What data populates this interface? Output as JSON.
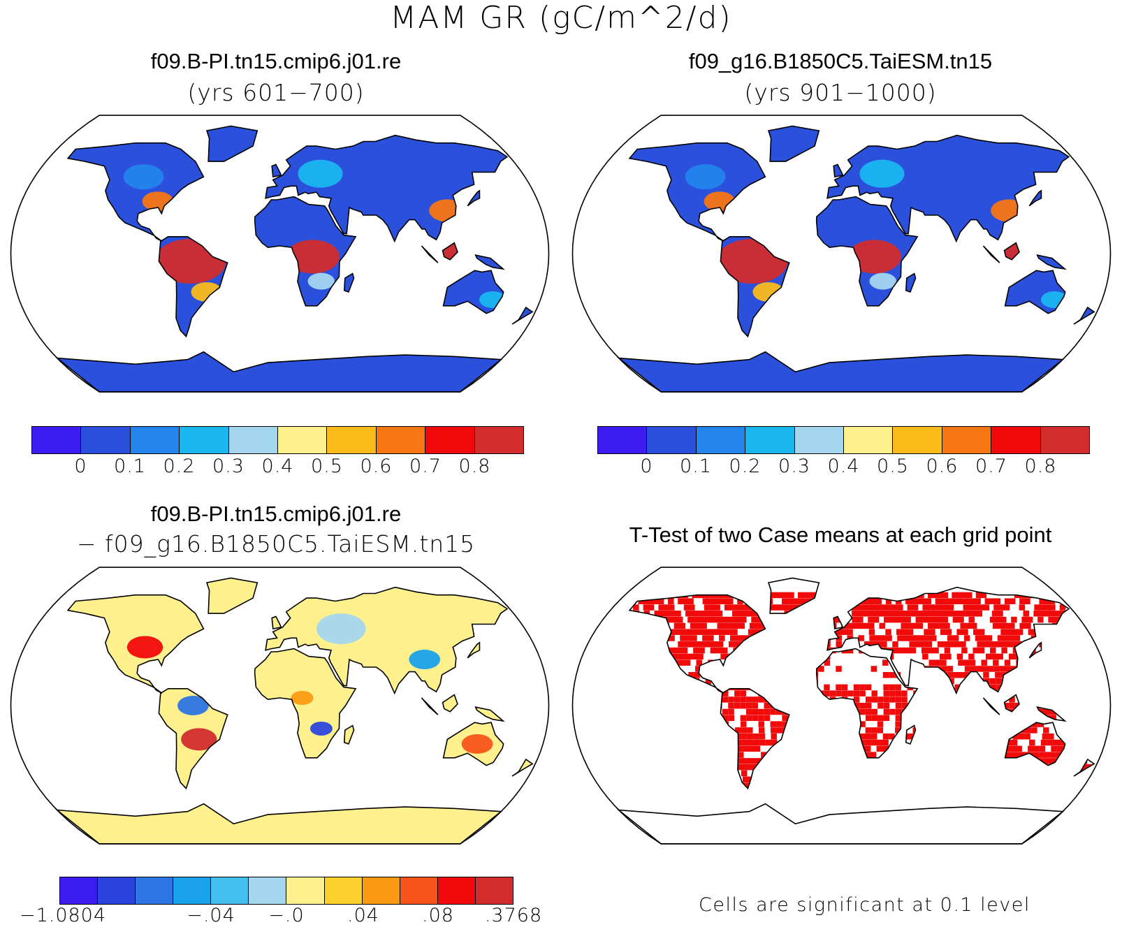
{
  "title": "MAM GR (gC/m^2/d)",
  "panels": {
    "top_left": {
      "title": "f09.B-PI.tn15.cmip6.j01.re",
      "subtitle": "(yrs 601−700)"
    },
    "top_right": {
      "title": "f09_g16.B1850C5.TaiESM.tn15",
      "subtitle": "(yrs 901−1000)"
    },
    "bottom_left": {
      "title": "f09.B-PI.tn15.cmip6.j01.re",
      "subtitle": "− f09_g16.B1850C5.TaiESM.tn15"
    },
    "bottom_right": {
      "title": "T-Test of two Case means at each grid point",
      "note": "Cells are significant at 0.1 level"
    }
  },
  "colorbars": {
    "absolute": {
      "colors": [
        "#3d1cf2",
        "#2b51dc",
        "#2384ec",
        "#1ab6f0",
        "#a5d6f0",
        "#fdf08d",
        "#fbbc1b",
        "#f87514",
        "#f20a0a",
        "#d22c2c"
      ],
      "labels": [
        "0",
        "0.1",
        "0.2",
        "0.3",
        "0.4",
        "0.5",
        "0.6",
        "0.7",
        "0.8"
      ]
    },
    "difference": {
      "colors": [
        "#3d1cf2",
        "#2b45dc",
        "#2d74e4",
        "#1aa1ec",
        "#44bdef",
        "#a5d6f0",
        "#fdf08d",
        "#fcd12d",
        "#fb9a12",
        "#f8541a",
        "#f20a0a",
        "#d22c2c"
      ],
      "labels": [
        "−1.0804",
        "−.04",
        "−.0",
        ".04",
        ".08",
        ".3768"
      ]
    }
  },
  "map_colors": {
    "ocean": "#ffffff",
    "coast": "#000000",
    "significant": "#f20a0a"
  }
}
